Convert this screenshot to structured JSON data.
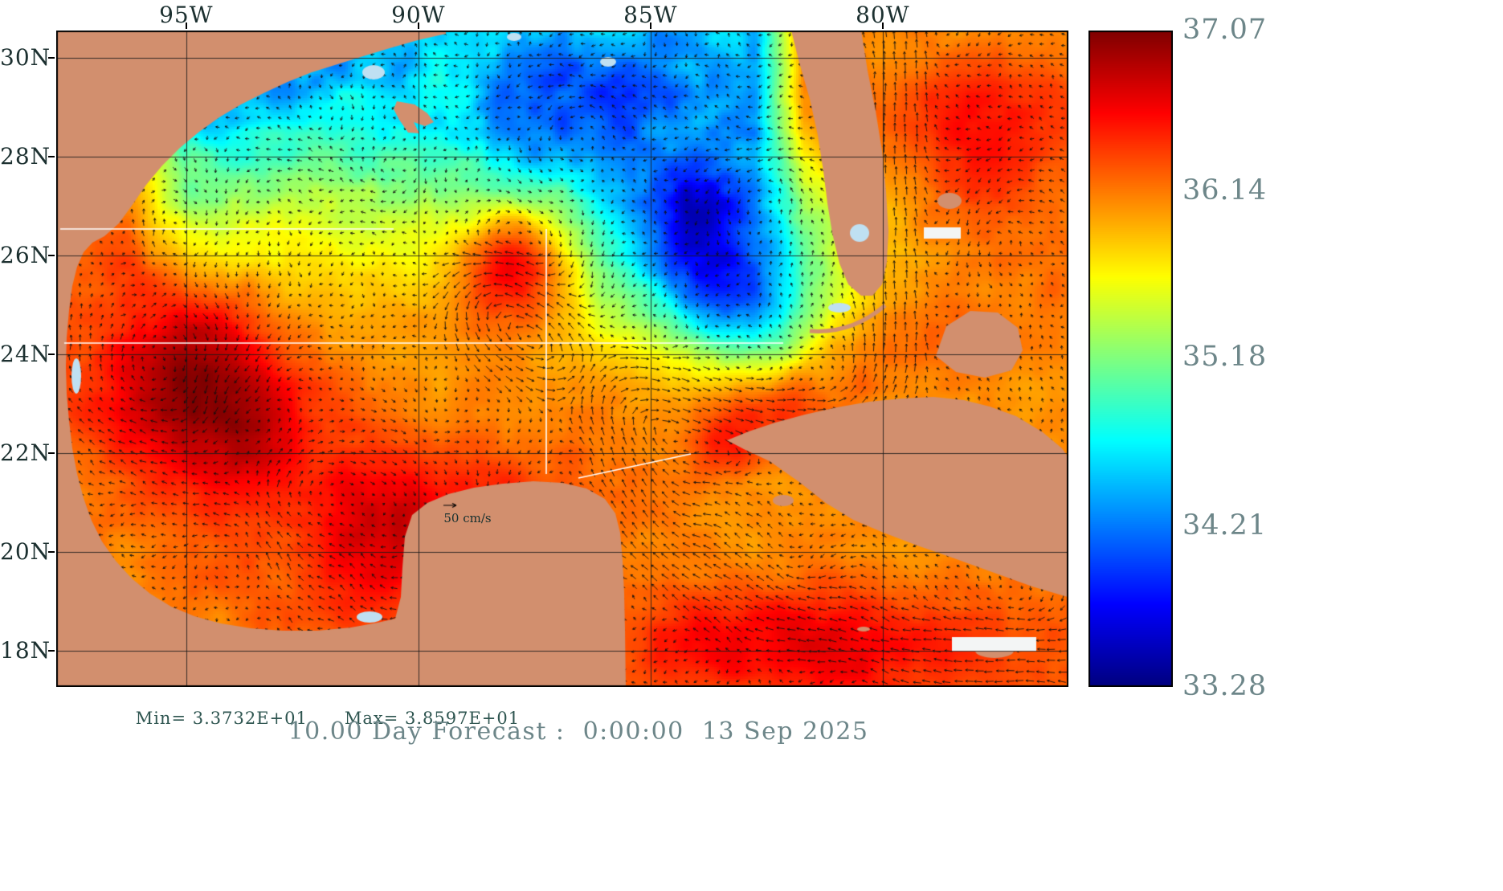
{
  "title": "10.00 Day Forecast :  0:00:00  13 Sep 2025",
  "stats": {
    "min_label": "Min= 3.3732E+01",
    "max_label": "Max= 3.8597E+01"
  },
  "axes": {
    "lon_ticks": [
      {
        "label": "95W",
        "deg": 95
      },
      {
        "label": "90W",
        "deg": 90
      },
      {
        "label": "85W",
        "deg": 85
      },
      {
        "label": "80W",
        "deg": 80
      }
    ],
    "lat_ticks": [
      {
        "label": "30N",
        "deg": 30
      },
      {
        "label": "28N",
        "deg": 28
      },
      {
        "label": "26N",
        "deg": 26
      },
      {
        "label": "24N",
        "deg": 24
      },
      {
        "label": "22N",
        "deg": 22
      },
      {
        "label": "20N",
        "deg": 20
      },
      {
        "label": "18N",
        "deg": 18
      }
    ]
  },
  "colorbar": {
    "min": 33.28,
    "max": 37.07,
    "tick_labels": [
      {
        "text": "37.07",
        "value": 37.07
      },
      {
        "text": "36.14",
        "value": 36.14
      },
      {
        "text": "35.18",
        "value": 35.18
      },
      {
        "text": "34.21",
        "value": 34.21
      },
      {
        "text": "33.28",
        "value": 33.28
      }
    ]
  },
  "scale_legend": {
    "label": "50 cm/s"
  },
  "colors": {
    "land": "#d28f6e",
    "lake": "#bfe0f2",
    "white_patch": "#f3f5f5",
    "arrow": "#101010",
    "grid": "#1a1a1a",
    "frame": "#000000",
    "axis_text": "#1c3030",
    "stats_text": "#2e5550",
    "title_text": "#6d8689",
    "colorbar_text": "#6d8689",
    "section_line": "#ffffff"
  },
  "chart_data": {
    "type": "heatmap",
    "title": "10.00 Day Forecast :  0:00:00  13 Sep 2025",
    "region": "Gulf of Mexico, Florida, Cuba and western North Atlantic",
    "field": "sea surface salinity with surface current vectors",
    "colormap": "jet",
    "colorbar_range": [
      33.28,
      37.07
    ],
    "colorbar_ticks": [
      37.07,
      36.14,
      35.18,
      34.21,
      33.28
    ],
    "field_min": 33.732,
    "field_max": 38.597,
    "lon_ticks_deg_w": [
      95,
      90,
      85,
      80
    ],
    "lat_ticks_deg_n": [
      30,
      28,
      26,
      24,
      22,
      20,
      18
    ],
    "lon_range_deg_w": [
      97.8,
      75.8
    ],
    "lat_range_deg_n": [
      17.3,
      30.55
    ],
    "vector_scale": "50 cm/s"
  }
}
